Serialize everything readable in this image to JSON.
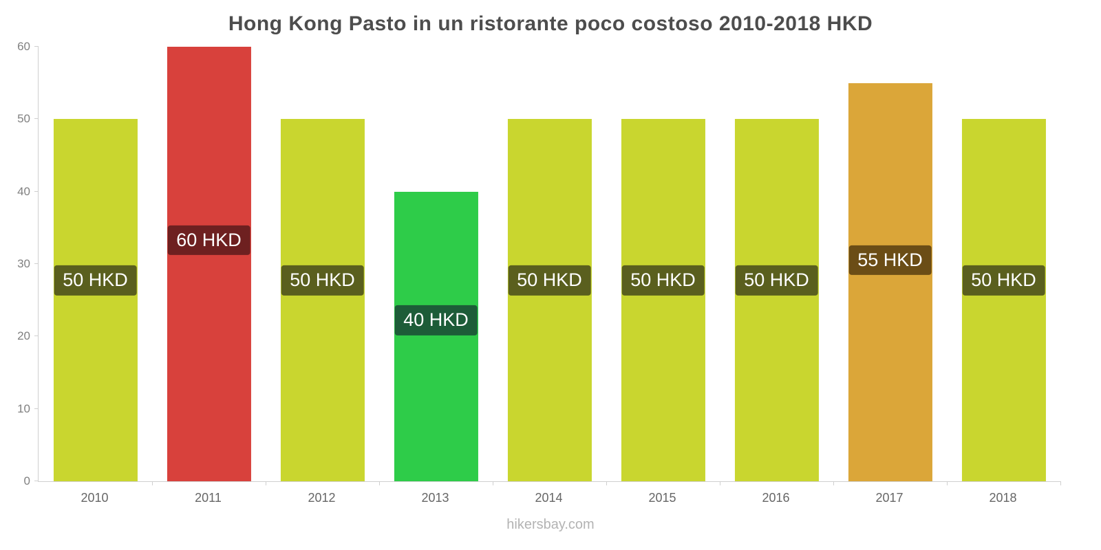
{
  "title": "Hong Kong Pasto in un ristorante poco costoso 2010-2018 HKD",
  "footer": "hikersbay.com",
  "chart_data": {
    "type": "bar",
    "title": "Hong Kong Pasto in un ristorante poco costoso 2010-2018 HKD",
    "xlabel": "",
    "ylabel": "",
    "categories": [
      "2010",
      "2011",
      "2012",
      "2013",
      "2014",
      "2015",
      "2016",
      "2017",
      "2018"
    ],
    "values": [
      50,
      60,
      50,
      40,
      50,
      50,
      50,
      55,
      50
    ],
    "value_labels": [
      "50 HKD",
      "60 HKD",
      "50 HKD",
      "40 HKD",
      "50 HKD",
      "50 HKD",
      "50 HKD",
      "55 HKD",
      "50 HKD"
    ],
    "bar_colors": [
      "#c9d62f",
      "#d8413c",
      "#c9d62f",
      "#2ecc49",
      "#c9d62f",
      "#c9d62f",
      "#c9d62f",
      "#dba639",
      "#c9d62f"
    ],
    "label_bg_colors": [
      "#5a5f1e",
      "#6e2020",
      "#5a5f1e",
      "#1d5c38",
      "#5a5f1e",
      "#5a5f1e",
      "#5a5f1e",
      "#6b4d16",
      "#5a5f1e"
    ],
    "ylim": [
      0,
      60
    ],
    "yticks": [
      0,
      10,
      20,
      30,
      40,
      50,
      60
    ],
    "grid": false,
    "legend": "none",
    "unit": "HKD",
    "label_center_fraction": 0.555
  }
}
